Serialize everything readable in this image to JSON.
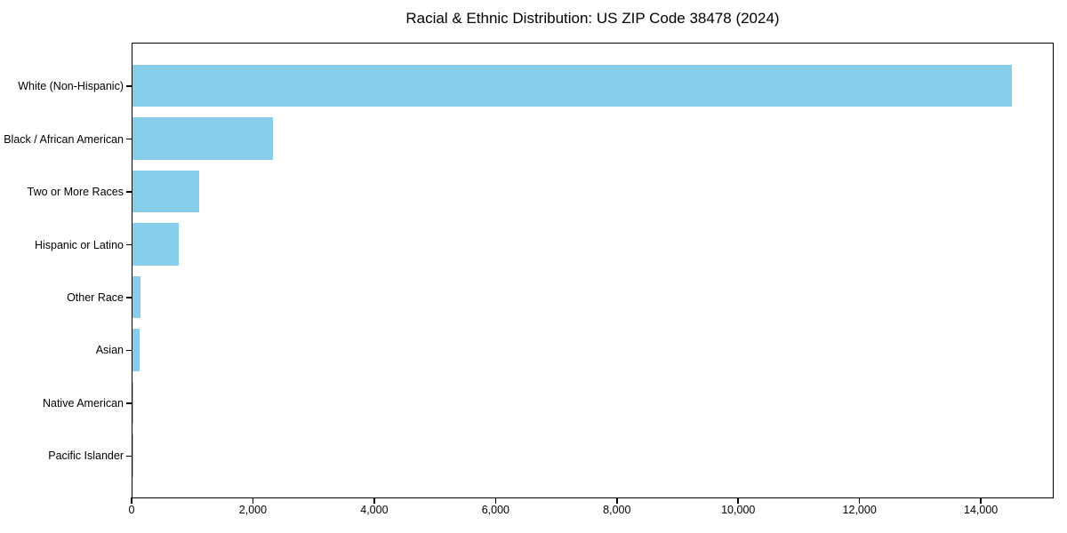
{
  "figure": {
    "background_color": "#ffffff"
  },
  "chart_data": {
    "type": "bar",
    "orientation": "horizontal",
    "title": "Racial & Ethnic Distribution: US ZIP Code 38478 (2024)",
    "categories": [
      "White (Non-Hispanic)",
      "Black / African American",
      "Two or More Races",
      "Hispanic or Latino",
      "Other Race",
      "Asian",
      "Native American",
      "Pacific Islander"
    ],
    "values": [
      14490,
      2310,
      1100,
      755,
      130,
      120,
      15,
      4
    ],
    "bar_color": "#87CEEB",
    "axis_color": "#000000",
    "text_color": "#000000",
    "xlabel": "",
    "ylabel": "",
    "xlim": [
      0,
      15200
    ],
    "x_ticks": [
      0,
      2000,
      4000,
      6000,
      8000,
      10000,
      12000,
      14000
    ],
    "x_tick_labels": [
      "0",
      "2,000",
      "4,000",
      "6,000",
      "8,000",
      "10,000",
      "12,000",
      "14,000"
    ],
    "grid": false,
    "legend": "none"
  }
}
